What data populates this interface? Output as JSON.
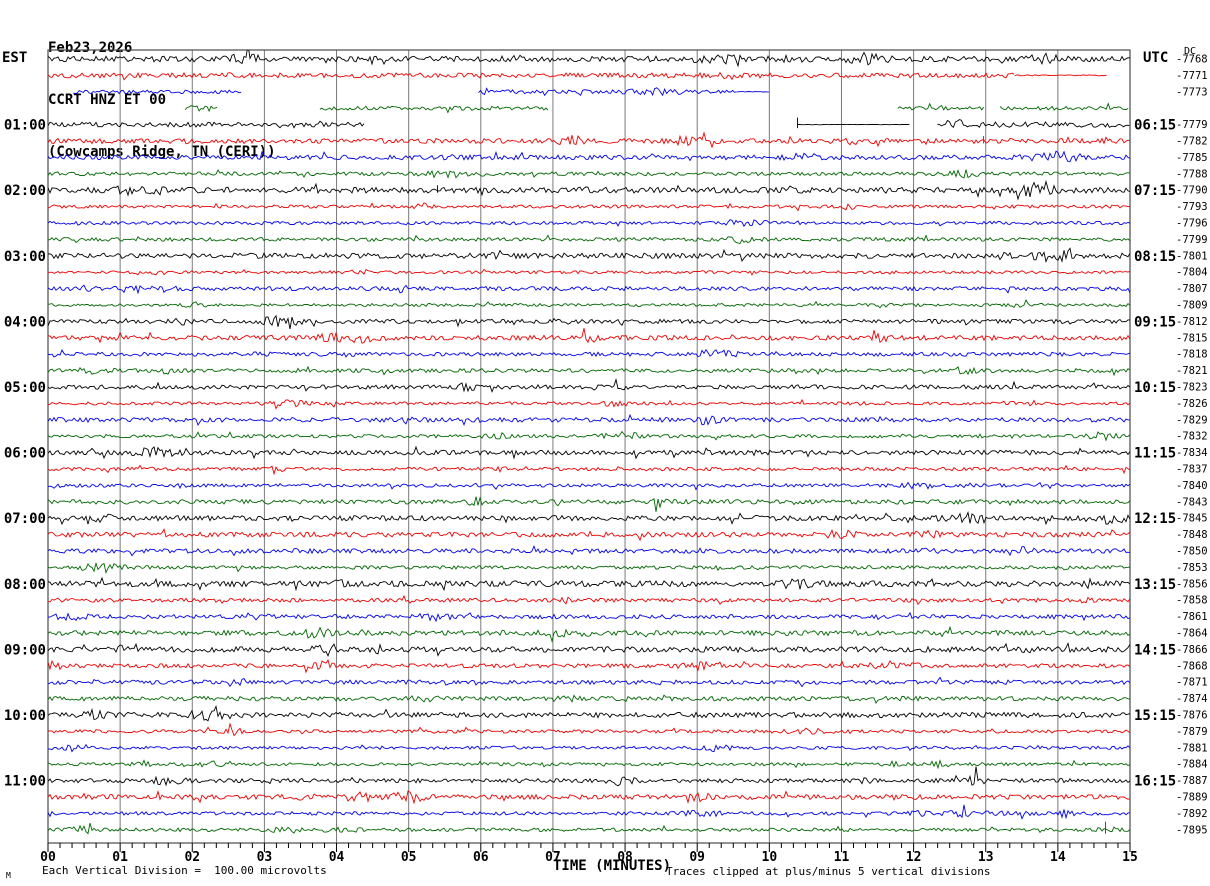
{
  "header": {
    "date": "Feb23,2026",
    "station": "CCRT HNZ ET 00",
    "location": "(Cowcamps Ridge, TN (CERI))"
  },
  "left_axis": {
    "header": "EST",
    "hour_labels": [
      "01:00",
      "02:00",
      "03:00",
      "04:00",
      "05:00",
      "06:00",
      "07:00",
      "08:00",
      "09:00",
      "10:00",
      "11:00"
    ]
  },
  "right_axis": {
    "header": "UTC",
    "dc_header": "DC",
    "time_labels": [
      "06:15",
      "07:15",
      "08:15",
      "09:15",
      "10:15",
      "11:15",
      "12:15",
      "13:15",
      "14:15",
      "15:15",
      "16:15"
    ]
  },
  "x_axis": {
    "title": "TIME (MINUTES)",
    "tick_labels": [
      "00",
      "01",
      "02",
      "03",
      "04",
      "05",
      "06",
      "07",
      "08",
      "09",
      "10",
      "11",
      "12",
      "13",
      "14",
      "15"
    ],
    "minutes_total": 15,
    "minor_ticks_per_minute": 6
  },
  "footer": {
    "scale_note": "Each Vertical Division =  100.00 microvolts",
    "clip_note": "Traces clipped at plus/minus 5 vertical divisions",
    "corner_mark": "M"
  },
  "colors": {
    "trace_cycle": [
      "#000000",
      "#ee0000",
      "#0000ee",
      "#006600"
    ],
    "grid": "#7a7a7a",
    "frame": "#4a4a4a",
    "text": "#000000"
  },
  "chart_data": {
    "type": "line",
    "title": "Helicorder seismogram - CCRT HNZ ET 00, Cowcamps Ridge TN (CERI), Feb23,2026",
    "num_rows": 48,
    "minutes_per_row": 15,
    "row_color_cycle": [
      "black",
      "red",
      "blue",
      "green"
    ],
    "first_labeled_row": 4,
    "label_row_step": 4,
    "x_range_minutes": [
      0,
      15
    ],
    "dc_offsets": [
      -7768,
      -7771,
      -7773,
      null,
      -7779,
      -7782,
      -7785,
      -7788,
      -7790,
      -7793,
      -7796,
      -7799,
      -7801,
      -7804,
      -7807,
      -7809,
      -7812,
      -7815,
      -7818,
      -7821,
      -7823,
      -7826,
      -7829,
      -7832,
      -7834,
      -7837,
      -7840,
      -7843,
      -7845,
      -7848,
      -7850,
      -7853,
      -7856,
      -7858,
      -7861,
      -7864,
      -7866,
      -7868,
      -7871,
      -7874,
      -7876,
      -7879,
      -7881,
      -7884,
      -7887,
      -7889,
      -7892,
      -7895
    ],
    "row_segments": {
      "1": [
        [
          0,
          13.4,
          1
        ],
        [
          13.4,
          14.7,
          0.22
        ]
      ],
      "2": [
        [
          0.35,
          2.7,
          1
        ],
        [
          5.97,
          9.55,
          1.1
        ],
        [
          9.55,
          10.0,
          0.15
        ]
      ],
      "3": [
        [
          1.9,
          2.35,
          1.7
        ],
        [
          3.77,
          6.95,
          1
        ],
        [
          11.78,
          12.98,
          1
        ],
        [
          13.2,
          15,
          1
        ]
      ],
      "4": [
        [
          0,
          4.4,
          1
        ],
        [
          10.39,
          11.95,
          0.1
        ],
        [
          12.33,
          15,
          1.15
        ]
      ]
    },
    "row_spikes": {
      "4": [
        [
          10.39,
          7
        ]
      ],
      "5": [
        [
          12.97,
          5
        ]
      ],
      "8": [
        [
          5.4,
          5
        ]
      ],
      "47": [
        [
          14.66,
          8
        ]
      ]
    },
    "row_bursts": {
      "0": [
        [
          9.3,
          0.5,
          2.2
        ],
        [
          13.8,
          0.3,
          2.3
        ]
      ],
      "2": [
        [
          8.4,
          0.6,
          2.2
        ]
      ],
      "46": [
        [
          13.0,
          2.0,
          1.5
        ]
      ]
    }
  }
}
